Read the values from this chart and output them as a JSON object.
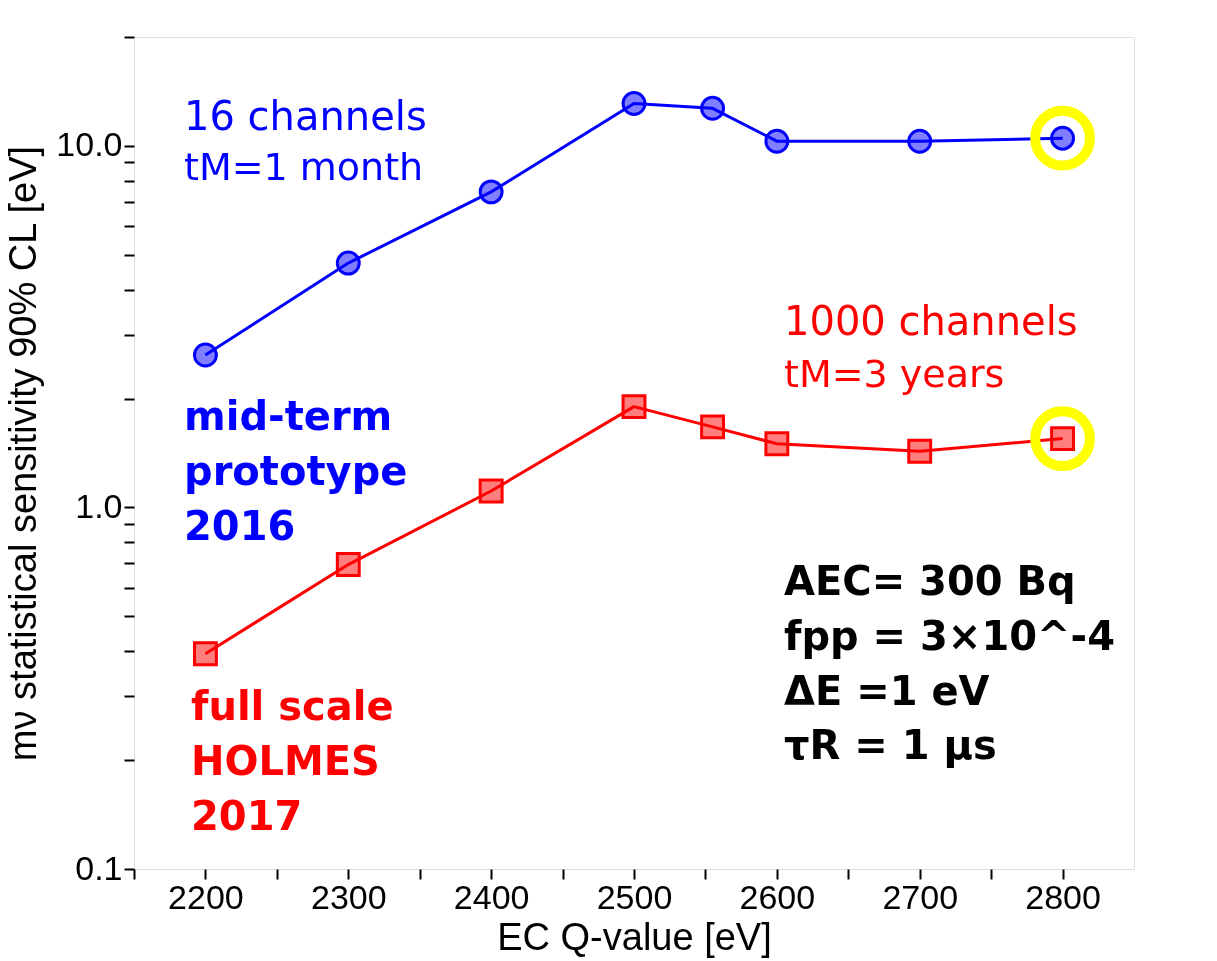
{
  "chart_data": {
    "type": "line",
    "xlabel": "EC Q-value [eV]",
    "ylabel": "mν statistical sensitivity 90% CL [eV]",
    "log": true,
    "xlim": [
      2150,
      2850
    ],
    "xticks": [
      {
        "value": 2150,
        "label": null
      },
      2200,
      {
        "value": 2250,
        "label": null
      },
      2300,
      {
        "value": 2350,
        "label": null
      },
      2400,
      {
        "value": 2450,
        "label": null
      },
      2500,
      {
        "value": 2550,
        "label": null
      },
      2600,
      {
        "value": 2650,
        "label": null
      },
      2700,
      {
        "value": 2750,
        "label": null
      },
      2800
    ],
    "ylim": [
      0.1,
      20
    ],
    "yticks": [
      0.1,
      {
        "value": 0.2,
        "label": null
      },
      {
        "value": 0.3,
        "label": null
      },
      {
        "value": 0.4,
        "label": null
      },
      {
        "value": 0.5,
        "label": null
      },
      {
        "value": 0.6,
        "label": null
      },
      {
        "value": 0.7,
        "label": null
      },
      {
        "value": 0.8,
        "label": null
      },
      {
        "value": 0.9,
        "label": null
      },
      {
        "value": 1,
        "label": "1.0"
      },
      {
        "value": 2,
        "label": null
      },
      {
        "value": 3,
        "label": null
      },
      {
        "value": 4,
        "label": null
      },
      {
        "value": 5,
        "label": null
      },
      {
        "value": 6,
        "label": null
      },
      {
        "value": 7,
        "label": null
      },
      {
        "value": 8,
        "label": null
      },
      {
        "value": 9,
        "label": null
      },
      {
        "value": 10,
        "label": "10.0"
      },
      {
        "value": 20,
        "label": null
      }
    ],
    "series": [
      {
        "color": "#0000ff",
        "marker": "circle",
        "x": [
          2200,
          2300,
          2400,
          2500,
          2555,
          2600,
          2700,
          2800
        ],
        "values": [
          2.64,
          4.74,
          7.46,
          13.1,
          12.7,
          10.3,
          10.3,
          10.5
        ]
      },
      {
        "color": "#ff0000",
        "marker": "square",
        "x": [
          2200,
          2300,
          2400,
          2500,
          2555,
          2600,
          2700,
          2800
        ],
        "values": [
          0.394,
          0.695,
          1.11,
          1.9,
          1.67,
          1.5,
          1.43,
          1.55
        ]
      },
      {
        "type": "scatter",
        "color": "#ffff00",
        "marker": "circle",
        "x": [
          2800,
          2800
        ],
        "values": [
          10.5,
          1.55
        ]
      }
    ],
    "annotations": [
      "16 channels",
      "tM=1 month",
      "mid-term\nprototype\n2016",
      "1000 channels",
      "tM=3 years",
      "full scale\nHOLMES\n2017",
      "AEC= 300 Bq\nfpp = 3×10^-4\nΔE =1 eV\nτR = 1 μs"
    ]
  }
}
